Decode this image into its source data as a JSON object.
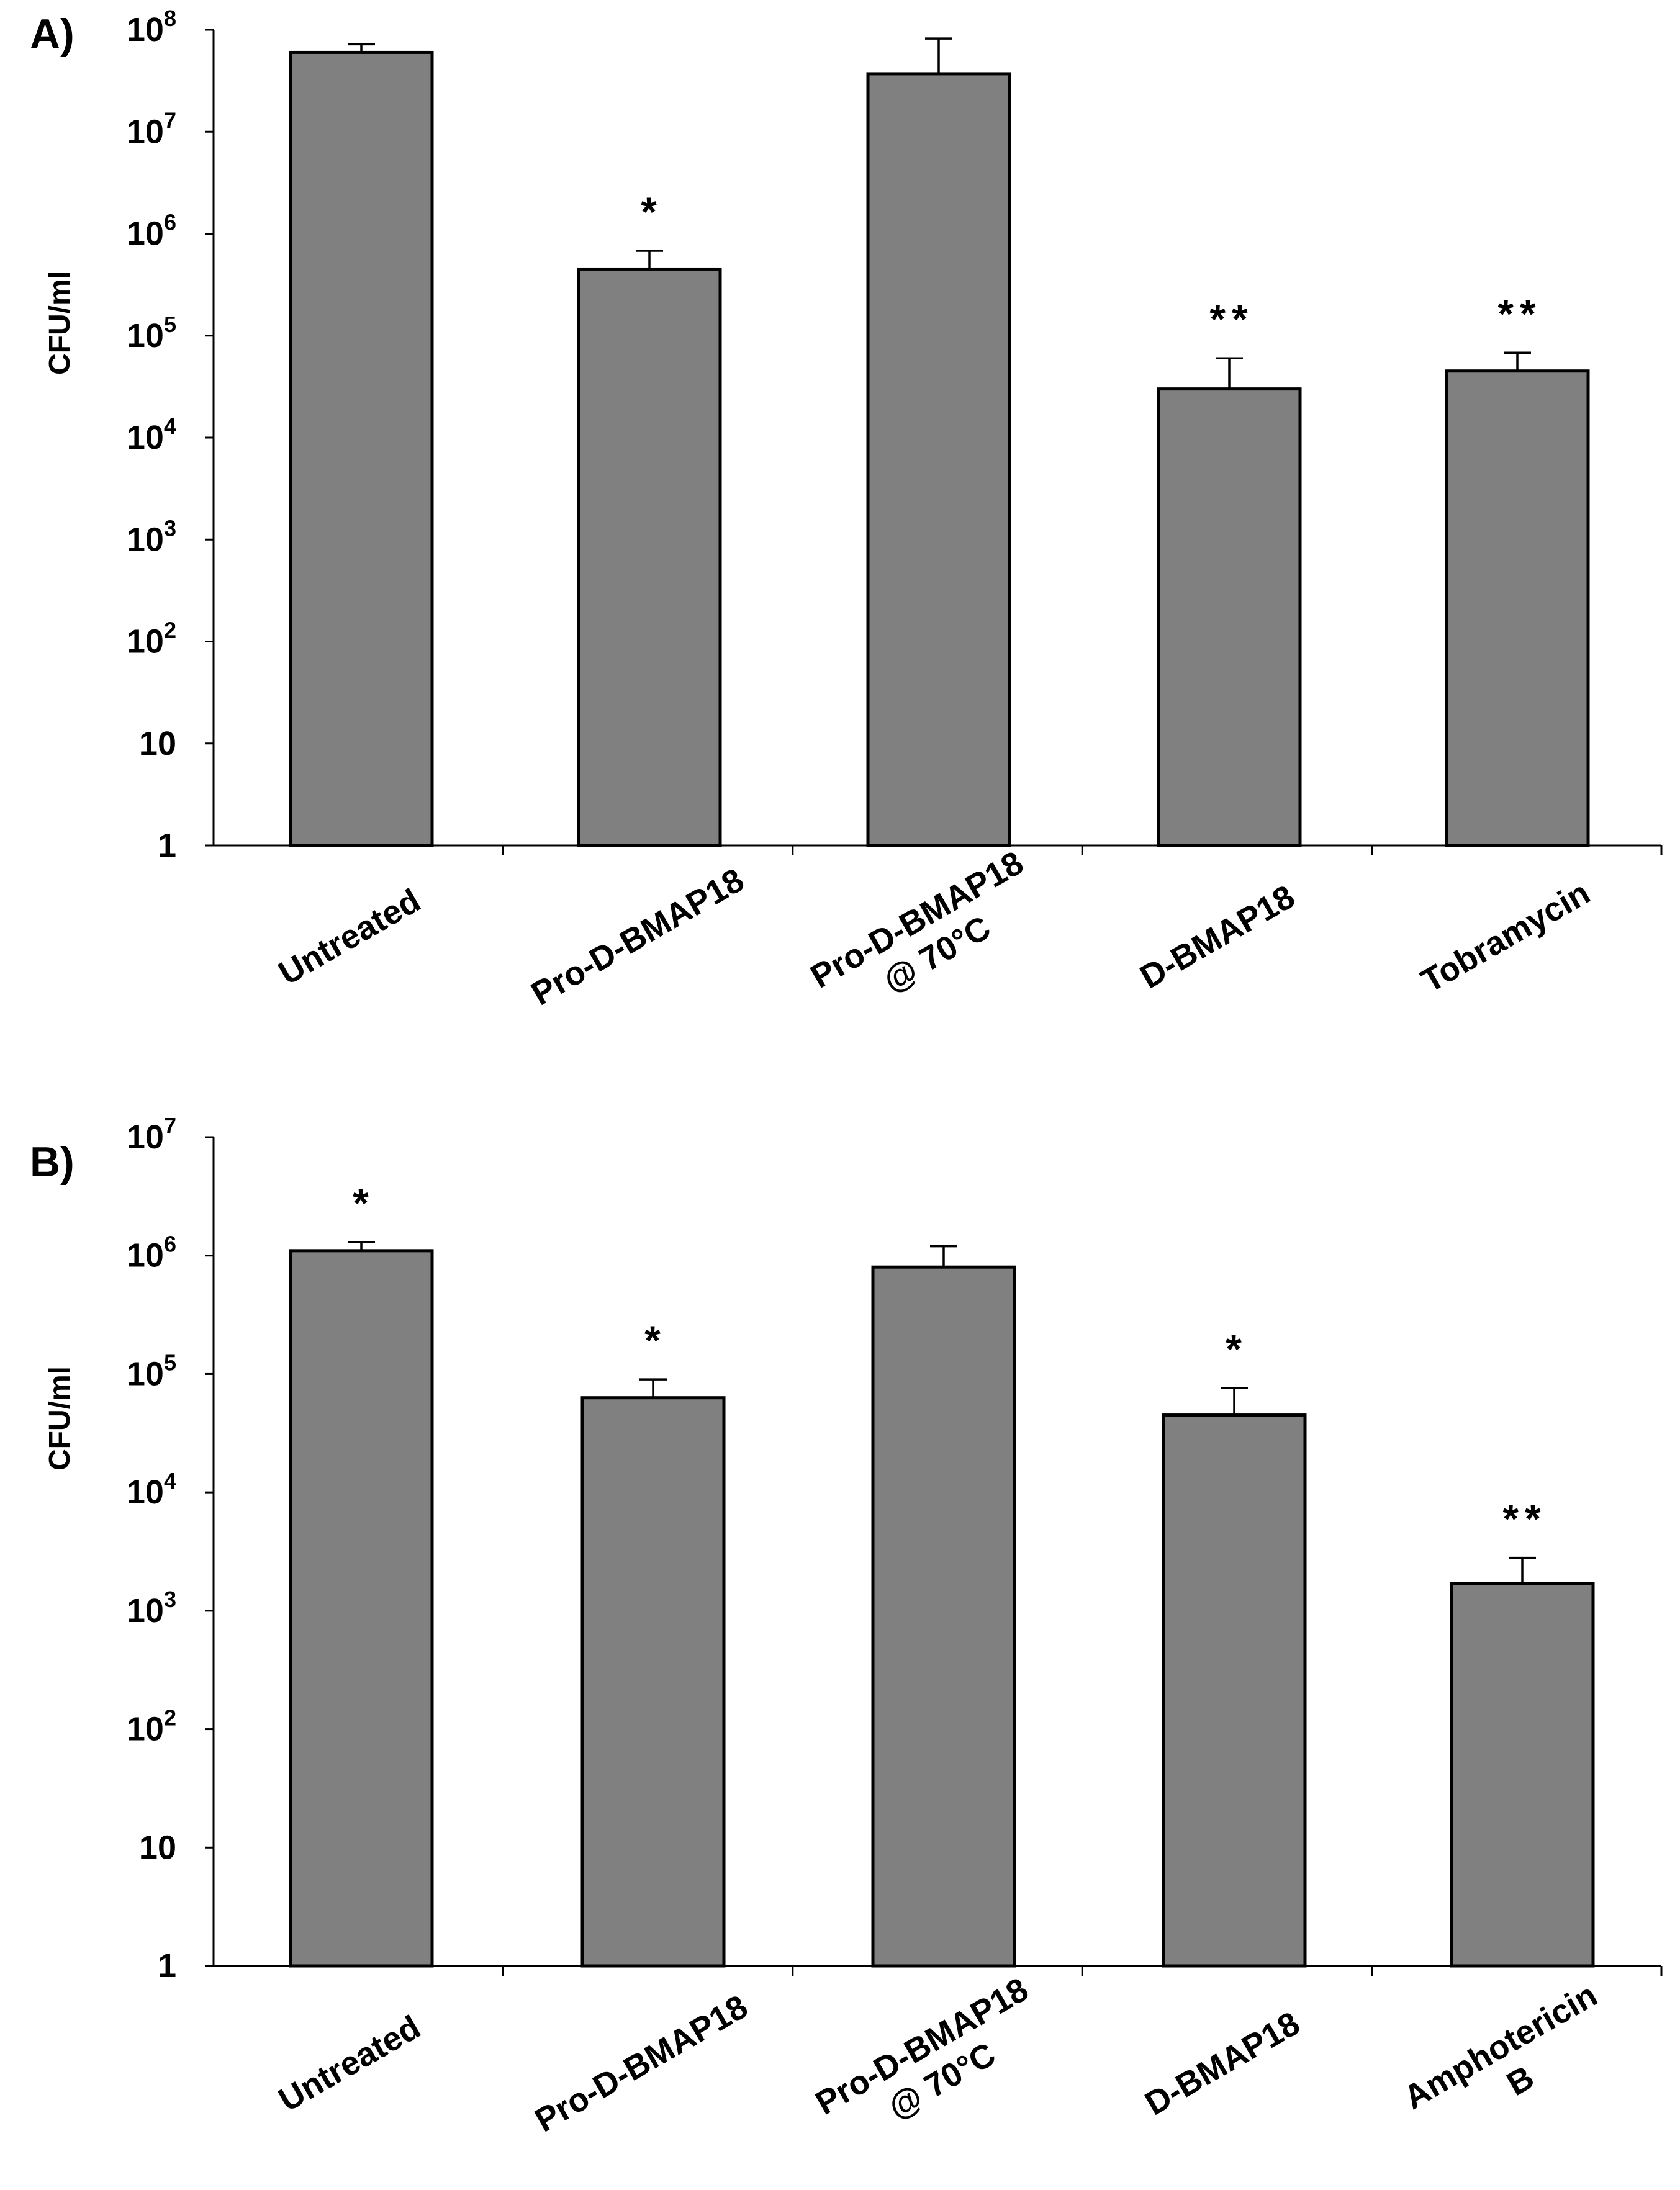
{
  "chart_data": [
    {
      "panel": "A)",
      "type": "bar",
      "ylabel": "CFU/ml",
      "yscale": "log",
      "ylim": [
        1,
        100000000
      ],
      "yticks": [
        {
          "base": "1",
          "exp": ""
        },
        {
          "base": "10",
          "exp": ""
        },
        {
          "base": "10",
          "exp": "2"
        },
        {
          "base": "10",
          "exp": "3"
        },
        {
          "base": "10",
          "exp": "4"
        },
        {
          "base": "10",
          "exp": "5"
        },
        {
          "base": "10",
          "exp": "6"
        },
        {
          "base": "10",
          "exp": "7"
        },
        {
          "base": "10",
          "exp": "8"
        }
      ],
      "categories": [
        [
          "Untreated"
        ],
        [
          "Pro-D-BMAP18"
        ],
        [
          "Pro-D-BMAP18",
          "@ 70°C"
        ],
        [
          "D-BMAP18"
        ],
        [
          "Tobramycin"
        ]
      ],
      "values": [
        60000000,
        450000,
        37000000,
        30000,
        45000
      ],
      "errors_upper": [
        72000000,
        680000,
        82000000,
        60000,
        68000
      ],
      "significance": [
        "",
        "*",
        "",
        "**",
        "**"
      ]
    },
    {
      "panel": "B)",
      "type": "bar",
      "ylabel": "CFU/ml",
      "yscale": "log",
      "ylim": [
        1,
        10000000
      ],
      "yticks": [
        {
          "base": "1",
          "exp": ""
        },
        {
          "base": "10",
          "exp": ""
        },
        {
          "base": "10",
          "exp": "2"
        },
        {
          "base": "10",
          "exp": "3"
        },
        {
          "base": "10",
          "exp": "4"
        },
        {
          "base": "10",
          "exp": "5"
        },
        {
          "base": "10",
          "exp": "6"
        },
        {
          "base": "10",
          "exp": "7"
        }
      ],
      "categories": [
        [
          "Untreated"
        ],
        [
          "Pro-D-BMAP18"
        ],
        [
          "Pro-D-BMAP18",
          "@ 70°C"
        ],
        [
          "D-BMAP18"
        ],
        [
          "Amphotericin",
          "B"
        ]
      ],
      "values": [
        1100000,
        63000,
        800000,
        45000,
        1700
      ],
      "errors_upper": [
        1300000,
        90000,
        1200000,
        76000,
        2800
      ],
      "significance": [
        "*",
        "*",
        "",
        "*",
        "**"
      ]
    }
  ]
}
